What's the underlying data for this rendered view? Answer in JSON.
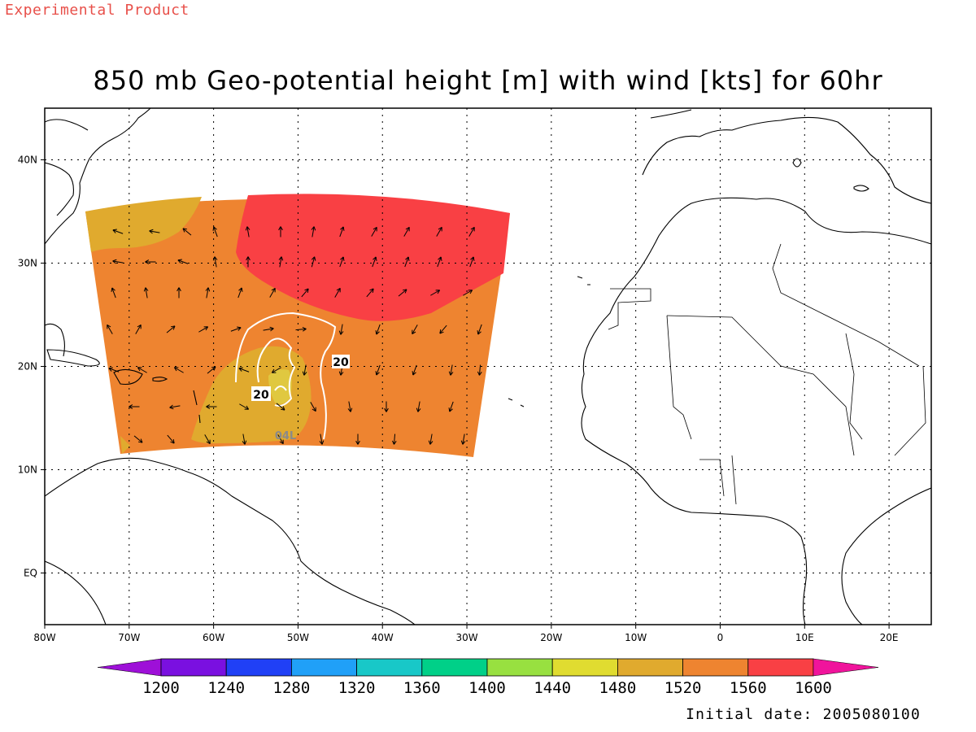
{
  "header": {
    "product_tag": "Experimental Product",
    "title": "850 mb Geo-potential height [m] with wind [kts] for 60hr",
    "initial_date": "Initial date: 2005080100"
  },
  "map": {
    "lon_range": [
      -80,
      25
    ],
    "lat_range": [
      -5,
      45
    ],
    "x_tick_labels": [
      "80W",
      "70W",
      "60W",
      "50W",
      "40W",
      "30W",
      "20W",
      "10W",
      "0",
      "10E",
      "20E"
    ],
    "y_tick_labels": [
      "40N",
      "30N",
      "20N",
      "10N",
      "EQ"
    ],
    "contour_labels": [
      "20",
      "20"
    ],
    "storm_label": "04L",
    "fill_colors": {
      "h1520": "#e0aa2e",
      "h1560": "#ee8430",
      "h1600": "#f94044",
      "h1480": "#e0c840"
    }
  },
  "colorbar": {
    "labels": [
      "1200",
      "1240",
      "1280",
      "1320",
      "1360",
      "1400",
      "1440",
      "1480",
      "1520",
      "1560",
      "1600"
    ],
    "colors": [
      "#9e10d8",
      "#7a10e0",
      "#2040f6",
      "#20a0f8",
      "#18c8c8",
      "#00d088",
      "#98e040",
      "#e0dc30",
      "#e0aa2e",
      "#ee8430",
      "#f94044",
      "#f0149c"
    ]
  }
}
